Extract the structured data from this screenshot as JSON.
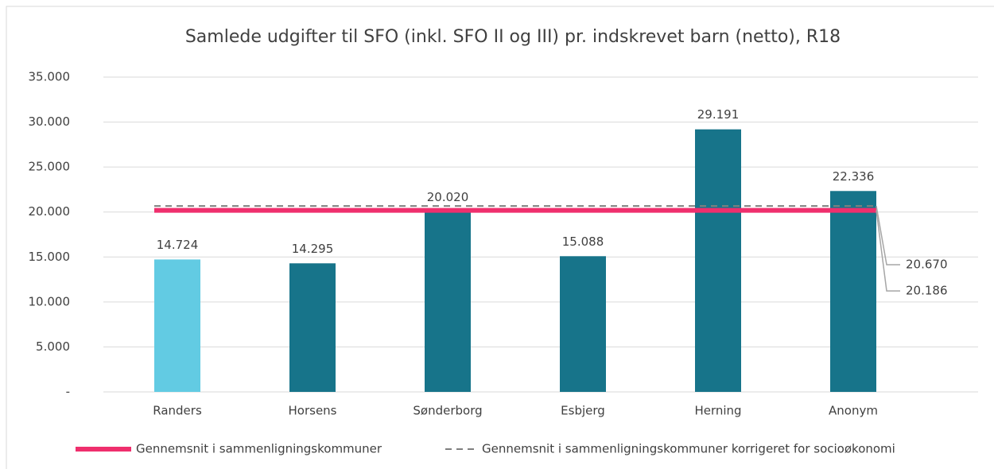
{
  "chart_data": {
    "type": "bar",
    "title": "Samlede udgifter til SFO (inkl. SFO II og III) pr. indskrevet barn (netto), R18",
    "categories": [
      "Randers",
      "Horsens",
      "Sønderborg",
      "Esbjerg",
      "Herning",
      "Anonym"
    ],
    "values": [
      14724,
      14295,
      20020,
      15088,
      29191,
      22336
    ],
    "value_labels": [
      "14.724",
      "14.295",
      "20.020",
      "15.088",
      "29.191",
      "22.336"
    ],
    "colors": [
      "#62cbe3",
      "#17748a",
      "#17748a",
      "#17748a",
      "#17748a",
      "#17748a"
    ],
    "lines": [
      {
        "name": "Gennemsnit i sammenligningskommuner",
        "color": "#ef2f6d",
        "style": "solid",
        "value": 20186,
        "value_label": "20.186"
      },
      {
        "name": "Gennemsnit i sammenligningskommuner korrigeret for socioøkonomi",
        "color": "#7f7f7f",
        "style": "dashed",
        "value": 20670,
        "value_label": "20.670"
      }
    ],
    "ylim": [
      0,
      35000
    ],
    "yticks": [
      {
        "value": 0,
        "label": "-"
      },
      {
        "value": 5000,
        "label": "5.000"
      },
      {
        "value": 10000,
        "label": "10.000"
      },
      {
        "value": 15000,
        "label": "15.000"
      },
      {
        "value": 20000,
        "label": "20.000"
      },
      {
        "value": 25000,
        "label": "25.000"
      },
      {
        "value": 30000,
        "label": "30.000"
      },
      {
        "value": 35000,
        "label": "35.000"
      }
    ],
    "grid": true
  }
}
